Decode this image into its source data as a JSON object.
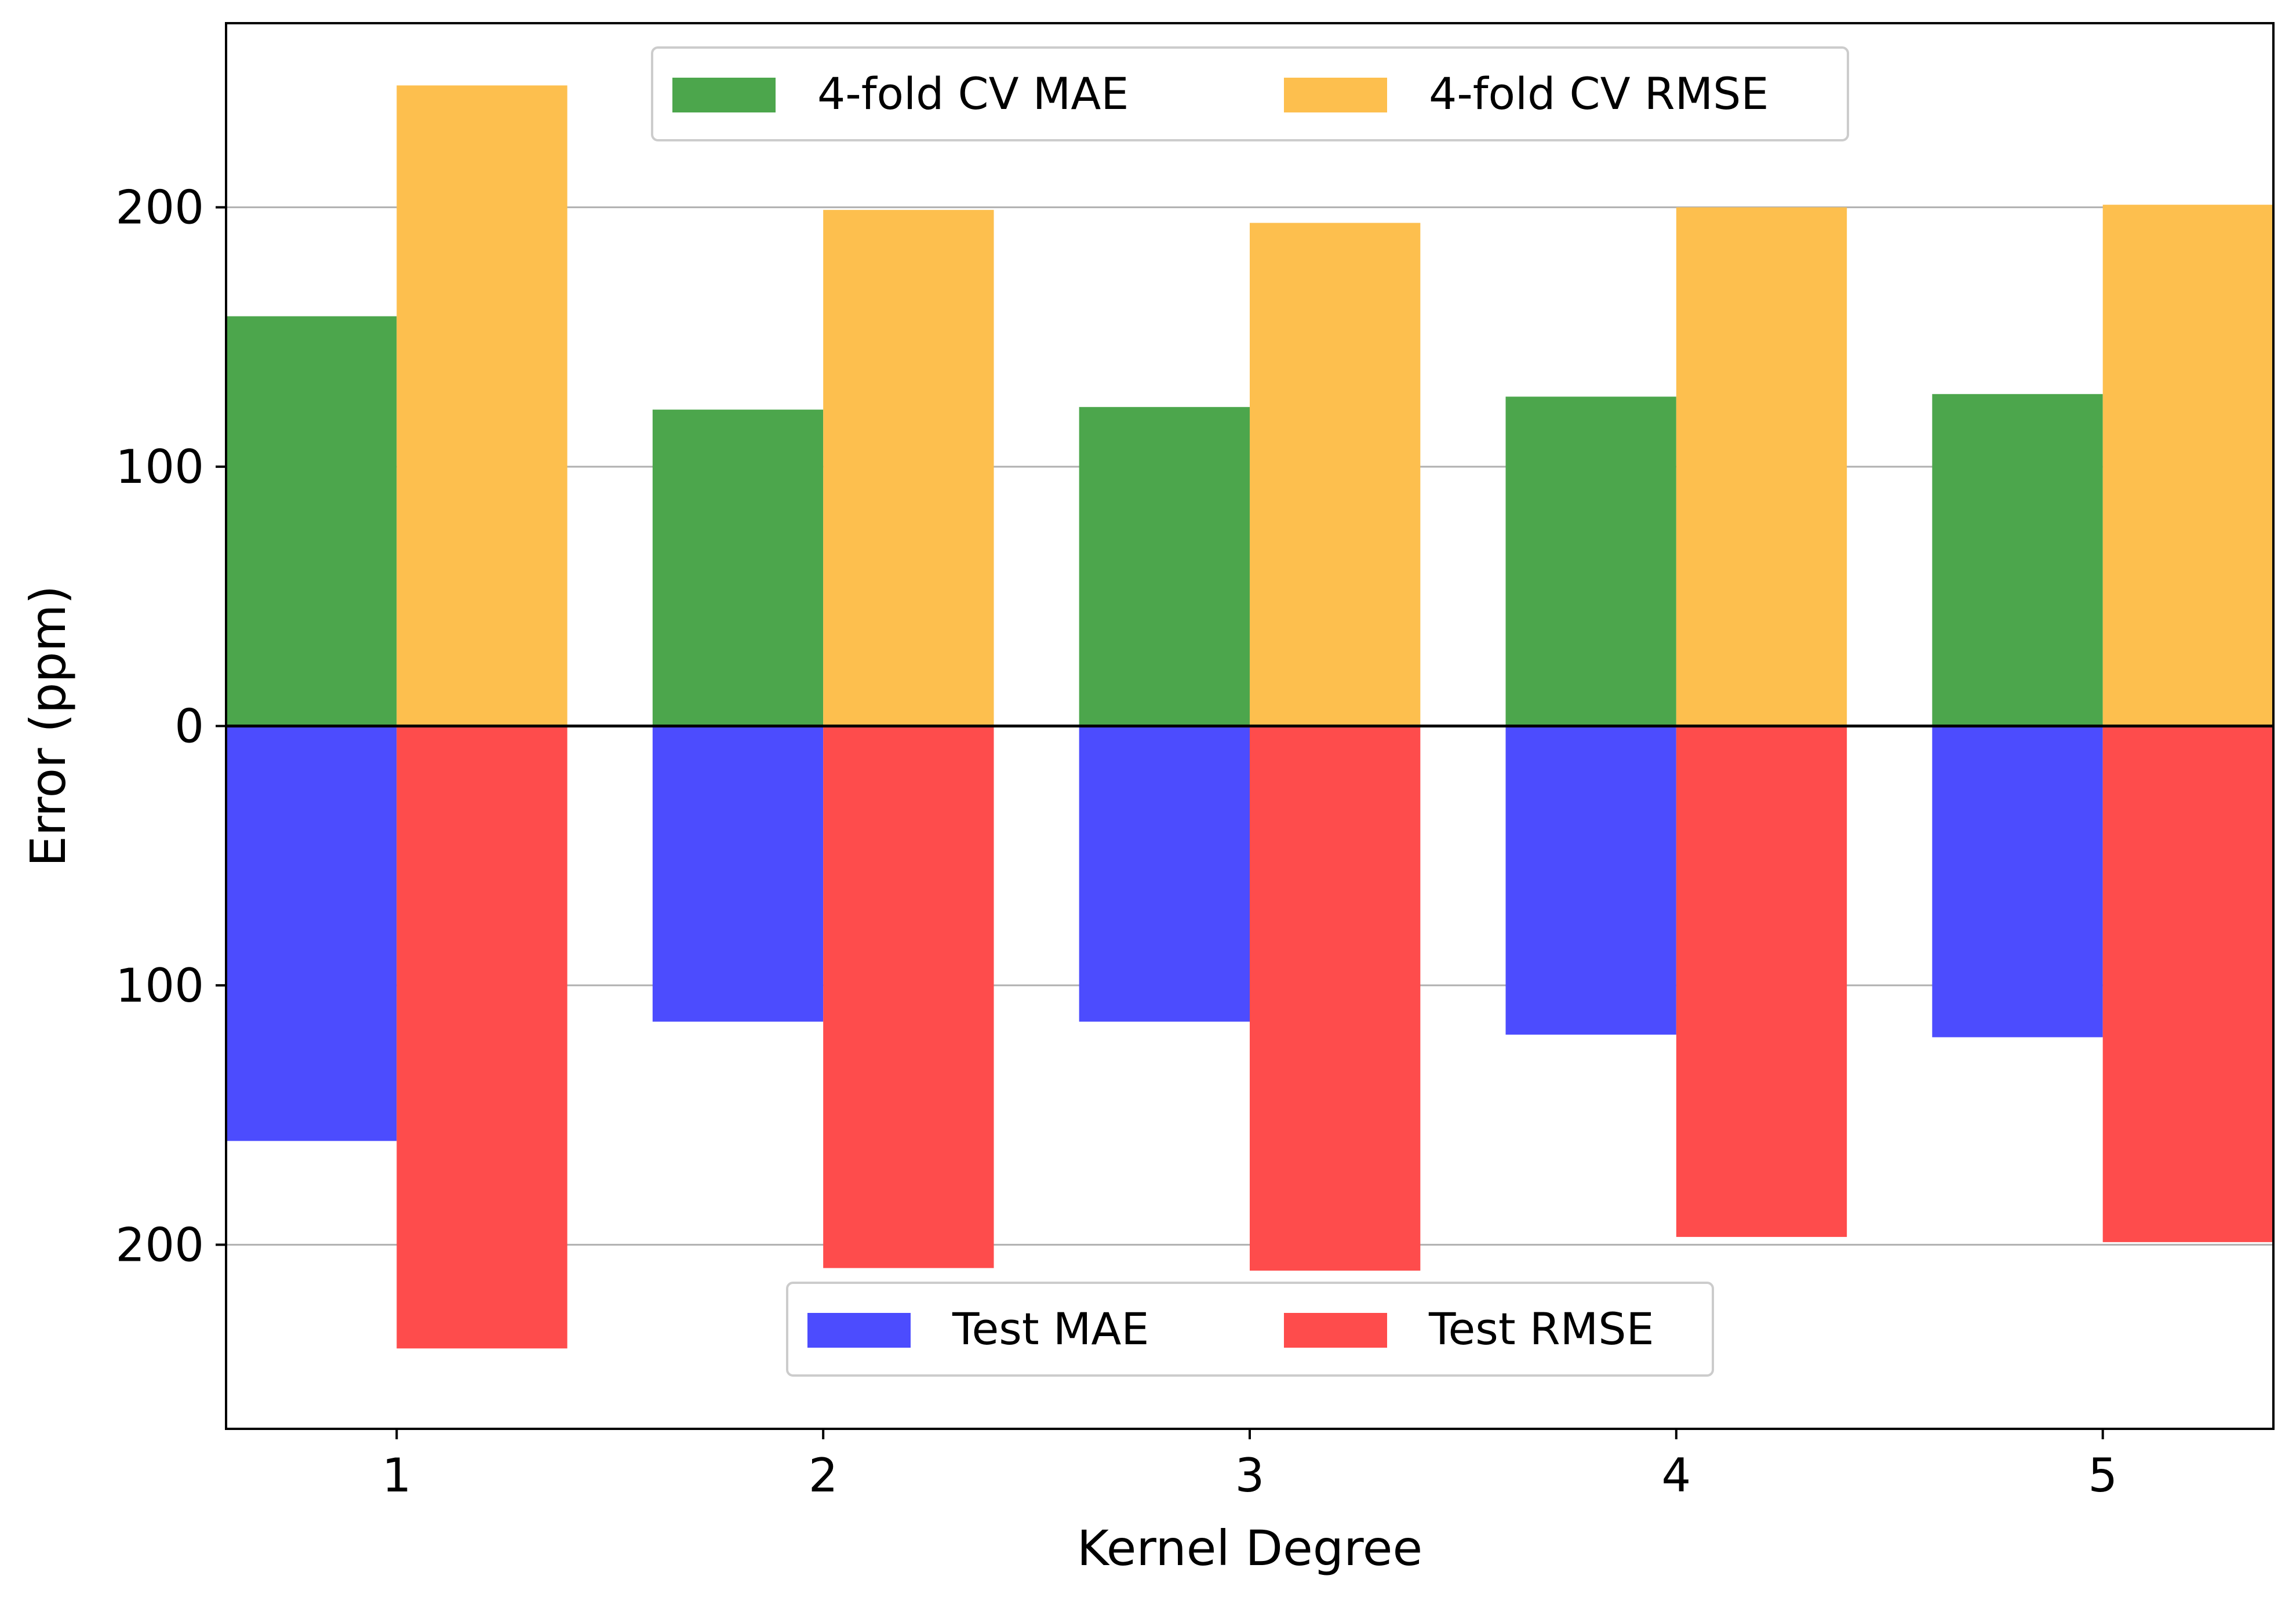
{
  "chart_data": {
    "type": "bar",
    "xlabel": "Kernel Degree",
    "ylabel": "Error (ppm)",
    "categories": [
      "1",
      "2",
      "3",
      "4",
      "5"
    ],
    "ylim": [
      -271,
      271
    ],
    "yticks": [
      {
        "value": 200,
        "label": "200"
      },
      {
        "value": 100,
        "label": "100"
      },
      {
        "value": 0,
        "label": "0"
      },
      {
        "value": -100,
        "label": "100"
      },
      {
        "value": -200,
        "label": "200"
      }
    ],
    "grid": "y",
    "upper_series": [
      {
        "name": "4-fold CV MAE",
        "color": "#4ca64c",
        "values": [
          158,
          122,
          123,
          127,
          128
        ]
      },
      {
        "name": "4-fold CV RMSE",
        "color": "#fdbf4e",
        "values": [
          247,
          199,
          194,
          200,
          201
        ]
      }
    ],
    "lower_series": [
      {
        "name": "Test MAE",
        "color": "#4c4cfe",
        "values": [
          160,
          114,
          114,
          119,
          120
        ]
      },
      {
        "name": "Test RMSE",
        "color": "#fe4c4c",
        "values": [
          240,
          209,
          210,
          197,
          199
        ]
      }
    ],
    "upper_legend": "upper-center",
    "lower_legend": "lower-center"
  }
}
